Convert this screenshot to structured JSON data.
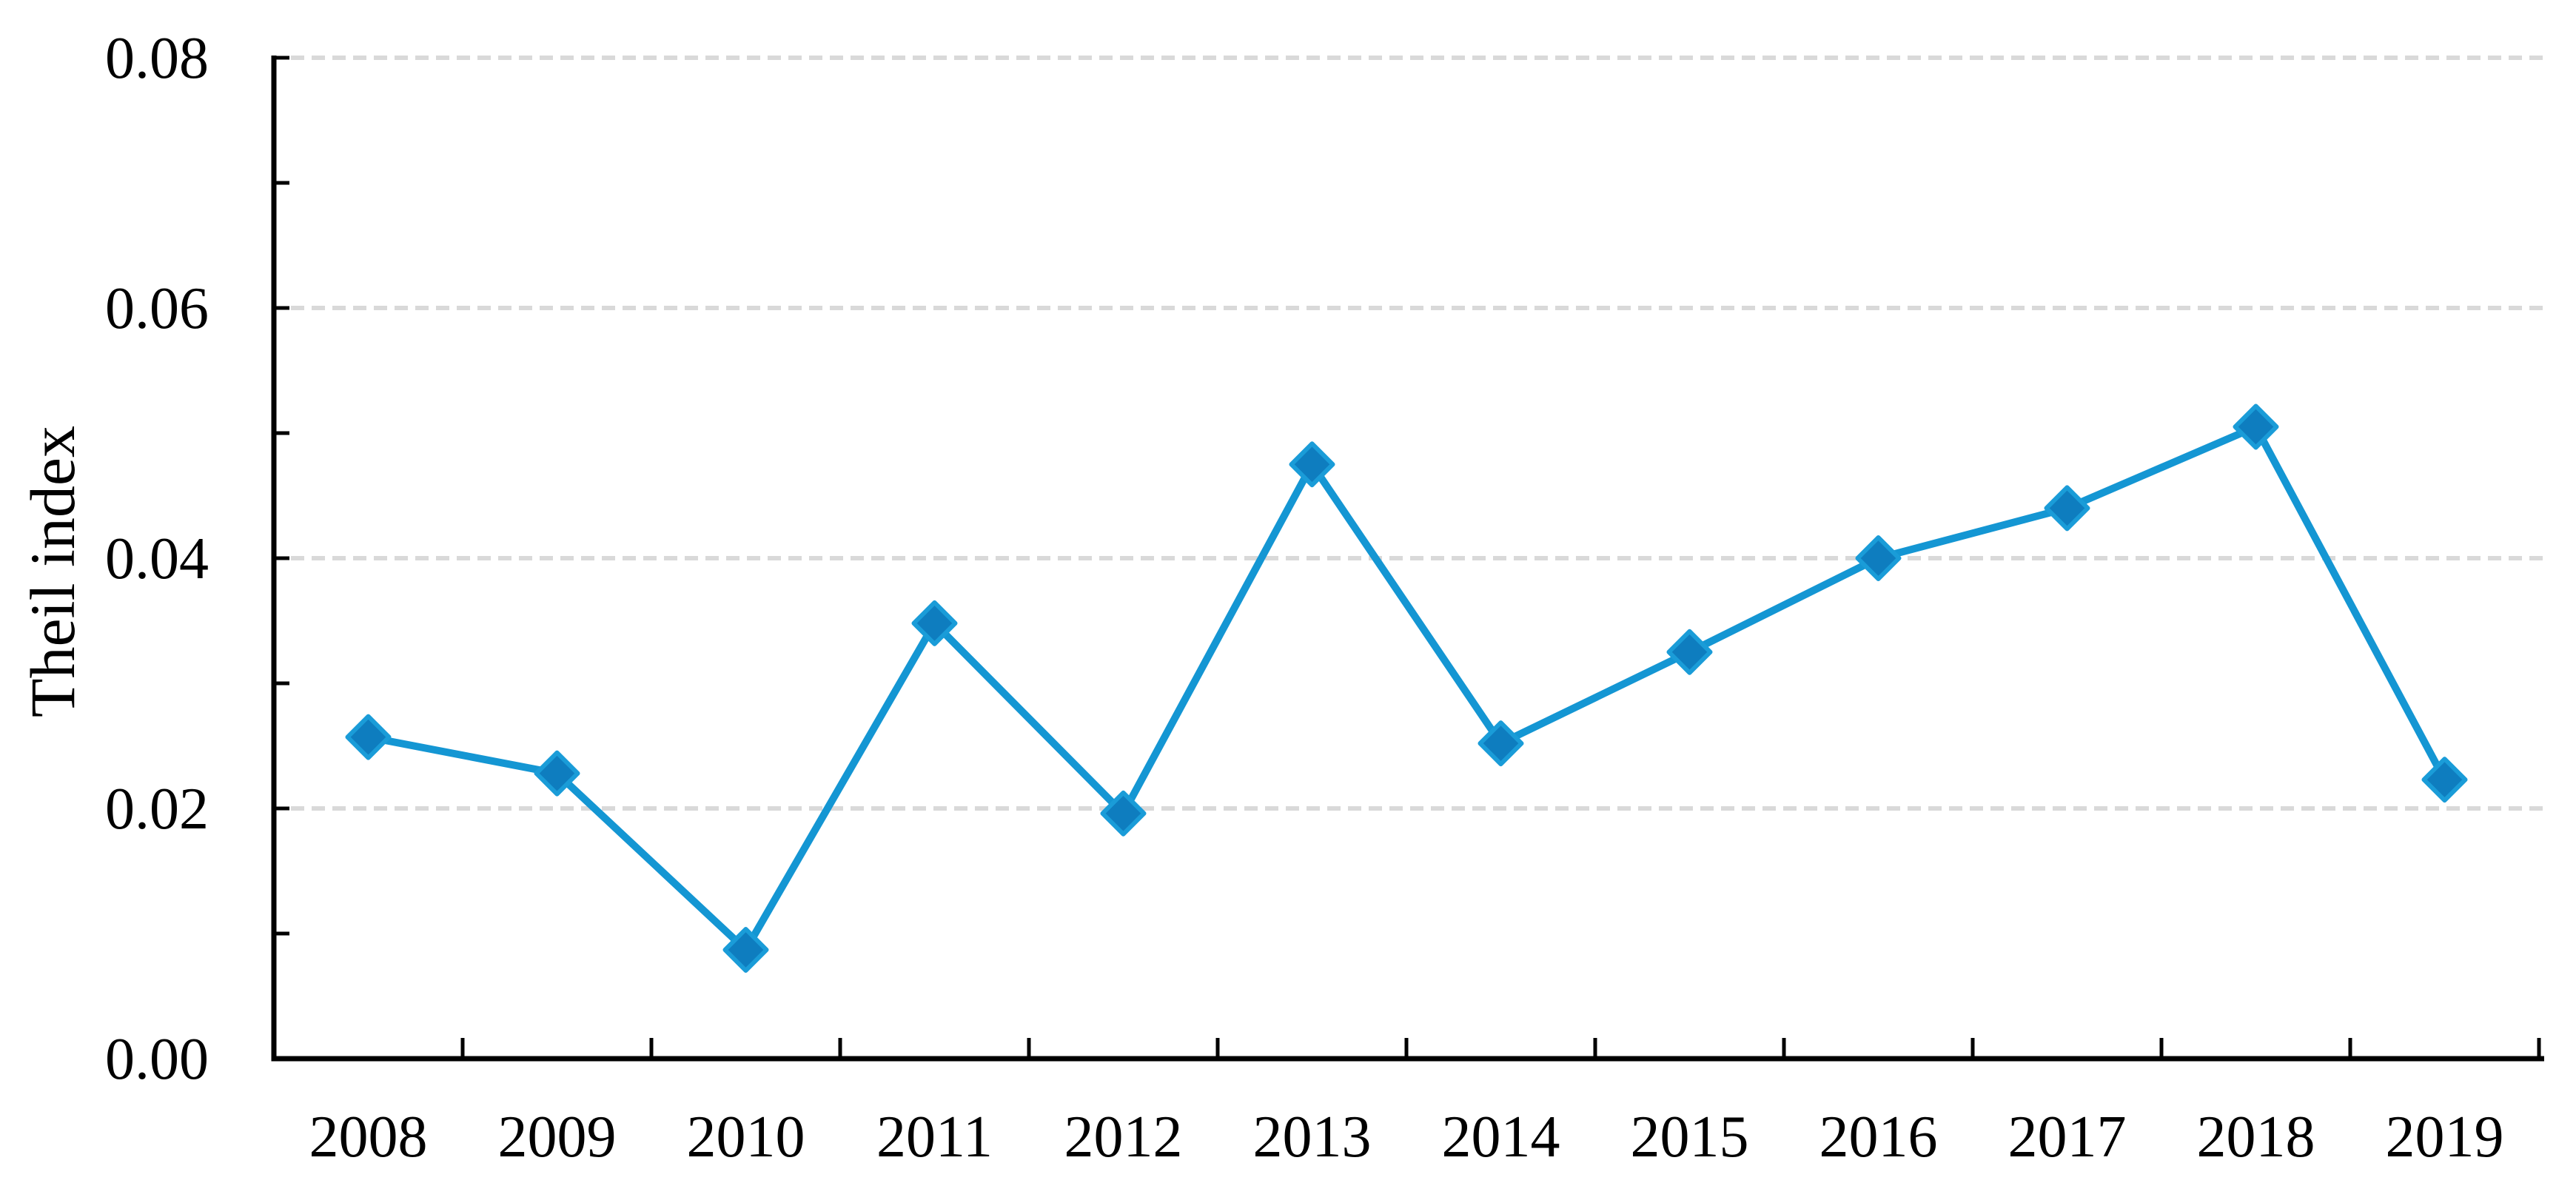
{
  "figure": {
    "background": "#ffffff"
  },
  "chart_data": {
    "type": "line",
    "title": "",
    "xlabel": "",
    "ylabel": "Theil index",
    "categories": [
      "2008",
      "2009",
      "2010",
      "2011",
      "2012",
      "2013",
      "2014",
      "2015",
      "2016",
      "2017",
      "2018",
      "2019"
    ],
    "series": [
      {
        "name": "Theil index",
        "values": [
          0.0257,
          0.0228,
          0.0087,
          0.0348,
          0.0196,
          0.0475,
          0.0252,
          0.0325,
          0.04,
          0.044,
          0.0505,
          0.0223
        ],
        "line_color": "#1496D3",
        "marker": "diamond",
        "marker_fill": "#0E7DBF",
        "marker_stroke": "#1A9CD8"
      }
    ],
    "ylim": [
      0,
      0.08
    ],
    "ytick_step": 0.02,
    "ytick_minor_step": 0.01,
    "ytick_labels": [
      "0.00",
      "0.02",
      "0.04",
      "0.06",
      "0.08"
    ],
    "grid": "horizontal-dashed",
    "grid_color": "#D9D9D9",
    "axis_color": "#000000",
    "legend": "none"
  }
}
